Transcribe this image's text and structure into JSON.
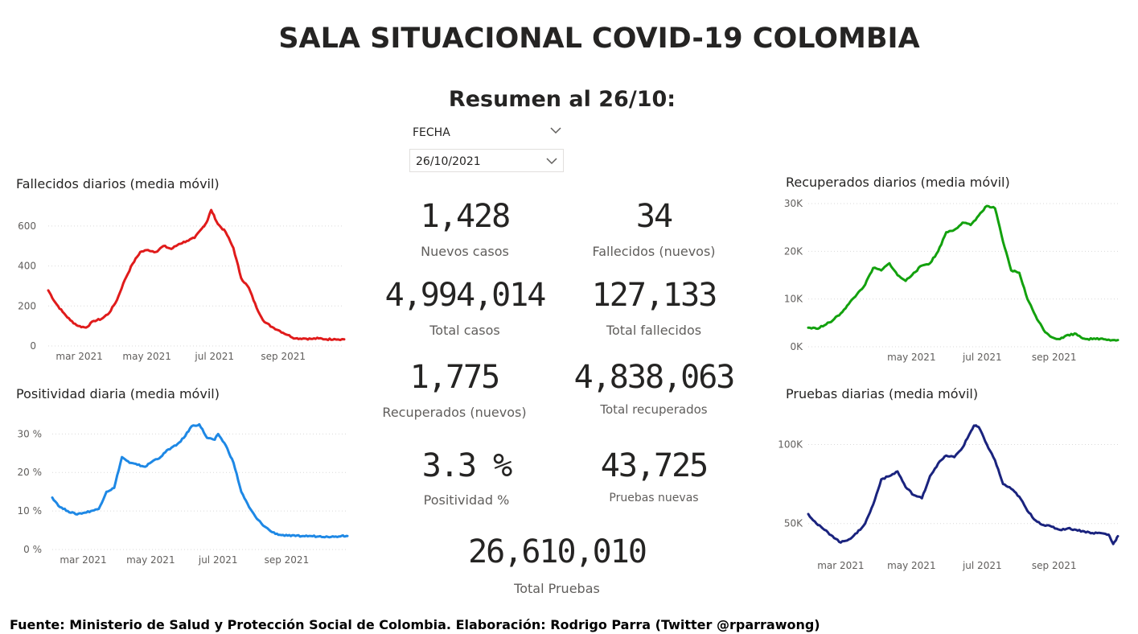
{
  "header": {
    "title": "SALA SITUACIONAL COVID-19 COLOMBIA",
    "subtitle": "Resumen al 26/10:"
  },
  "filter": {
    "label": "FECHA",
    "value": "26/10/2021",
    "icon": "chevron-down-icon"
  },
  "kpis": {
    "nuevos_casos": {
      "value": "1,428",
      "label": "Nuevos casos"
    },
    "fallecidos_nuevos": {
      "value": "34",
      "label": "Fallecidos (nuevos)"
    },
    "total_casos": {
      "value": "4,994,014",
      "label": "Total casos"
    },
    "total_fallecidos": {
      "value": "127,133",
      "label": "Total fallecidos"
    },
    "recuperados_nuevos": {
      "value": "1,775",
      "label": "Recuperados (nuevos)"
    },
    "total_recuperados": {
      "value": "4,838,063",
      "label": "Total recuperados"
    },
    "positividad": {
      "value": "3.3 %",
      "label": "Positividad %"
    },
    "pruebas_nuevas": {
      "value": "43,725",
      "label": "Pruebas nuevas"
    },
    "total_pruebas": {
      "value": "26,610,010",
      "label": "Total Pruebas"
    }
  },
  "footer": "Fuente: Ministerio de Salud y Protección Social de Colombia. Elaboración: Rodrigo Parra (Twitter @rparrawong)",
  "chart_data": [
    {
      "id": "fallecidos",
      "type": "line",
      "title": "Fallecidos diarios (media móvil)",
      "color": "#e01b1b",
      "ylim": [
        0,
        700
      ],
      "yticks": [
        0,
        200,
        400,
        600
      ],
      "ytick_labels": [
        "0",
        "200",
        "400",
        "600"
      ],
      "xlim": [
        "2021-02-01",
        "2021-10-26"
      ],
      "xticks": [
        "2021-03-01",
        "2021-05-01",
        "2021-07-01",
        "2021-09-01"
      ],
      "xtick_labels": [
        "mar 2021",
        "may 2021",
        "jul 2021",
        "sep 2021"
      ],
      "grid": true,
      "x": [
        "2021-02-01",
        "2021-02-07",
        "2021-02-14",
        "2021-02-21",
        "2021-02-28",
        "2021-03-07",
        "2021-03-14",
        "2021-03-21",
        "2021-03-28",
        "2021-04-04",
        "2021-04-11",
        "2021-04-18",
        "2021-04-25",
        "2021-05-02",
        "2021-05-09",
        "2021-05-16",
        "2021-05-23",
        "2021-05-30",
        "2021-06-06",
        "2021-06-13",
        "2021-06-20",
        "2021-06-24",
        "2021-06-28",
        "2021-07-04",
        "2021-07-11",
        "2021-07-18",
        "2021-07-25",
        "2021-08-01",
        "2021-08-08",
        "2021-08-15",
        "2021-08-22",
        "2021-08-29",
        "2021-09-05",
        "2021-09-12",
        "2021-09-19",
        "2021-09-26",
        "2021-10-03",
        "2021-10-10",
        "2021-10-17",
        "2021-10-26"
      ],
      "values": [
        278,
        220,
        170,
        128,
        100,
        92,
        125,
        135,
        165,
        230,
        330,
        410,
        470,
        480,
        470,
        500,
        485,
        510,
        525,
        540,
        590,
        620,
        680,
        610,
        570,
        490,
        340,
        290,
        190,
        120,
        95,
        75,
        55,
        38,
        38,
        35,
        38,
        33,
        35,
        33
      ]
    },
    {
      "id": "positividad",
      "type": "line",
      "title": "Positividad diaria (media móvil)",
      "color": "#1e88e5",
      "ylim": [
        0,
        33
      ],
      "yticks": [
        0,
        10,
        20,
        30
      ],
      "ytick_labels": [
        "0 %",
        "10 %",
        "20 %",
        "30 %"
      ],
      "xlim": [
        "2021-02-01",
        "2021-10-26"
      ],
      "xticks": [
        "2021-03-01",
        "2021-05-01",
        "2021-07-01",
        "2021-09-01"
      ],
      "xtick_labels": [
        "mar 2021",
        "may 2021",
        "jul 2021",
        "sep 2021"
      ],
      "grid": true,
      "x": [
        "2021-02-01",
        "2021-02-08",
        "2021-02-15",
        "2021-02-22",
        "2021-03-01",
        "2021-03-08",
        "2021-03-15",
        "2021-03-22",
        "2021-03-29",
        "2021-04-05",
        "2021-04-12",
        "2021-04-19",
        "2021-04-26",
        "2021-05-03",
        "2021-05-10",
        "2021-05-17",
        "2021-05-24",
        "2021-05-31",
        "2021-06-07",
        "2021-06-14",
        "2021-06-21",
        "2021-06-28",
        "2021-07-01",
        "2021-07-08",
        "2021-07-15",
        "2021-07-22",
        "2021-07-29",
        "2021-08-05",
        "2021-08-12",
        "2021-08-19",
        "2021-08-26",
        "2021-09-02",
        "2021-09-09",
        "2021-09-16",
        "2021-09-23",
        "2021-09-30",
        "2021-10-07",
        "2021-10-14",
        "2021-10-21",
        "2021-10-26"
      ],
      "values": [
        13.5,
        11,
        10,
        9.2,
        9.5,
        10,
        10.5,
        15,
        16,
        24,
        22.5,
        22,
        21.5,
        23,
        24,
        26,
        27,
        29,
        32,
        32.5,
        29,
        28.5,
        30,
        27,
        22.5,
        15,
        11,
        8,
        6,
        4.5,
        3.8,
        3.6,
        3.5,
        3.5,
        3.5,
        3.4,
        3.4,
        3.3,
        3.6,
        3.5
      ]
    },
    {
      "id": "recuperados",
      "type": "line",
      "title": "Recuperados diarios (media móvil)",
      "color": "#13a10e",
      "ylim": [
        0,
        30000
      ],
      "yticks": [
        0,
        10000,
        20000,
        30000
      ],
      "ytick_labels": [
        "0K",
        "10K",
        "20K",
        "30K"
      ],
      "xlim": [
        "2021-02-01",
        "2021-10-26"
      ],
      "xticks": [
        "2021-05-01",
        "2021-07-01",
        "2021-09-01"
      ],
      "xtick_labels": [
        "may 2021",
        "jul 2021",
        "sep 2021"
      ],
      "grid": true,
      "x": [
        "2021-02-01",
        "2021-02-08",
        "2021-02-15",
        "2021-02-22",
        "2021-03-01",
        "2021-03-08",
        "2021-03-15",
        "2021-03-22",
        "2021-03-29",
        "2021-04-05",
        "2021-04-12",
        "2021-04-19",
        "2021-04-26",
        "2021-05-03",
        "2021-05-10",
        "2021-05-17",
        "2021-05-24",
        "2021-05-31",
        "2021-06-07",
        "2021-06-14",
        "2021-06-21",
        "2021-06-28",
        "2021-07-05",
        "2021-07-12",
        "2021-07-19",
        "2021-07-26",
        "2021-08-02",
        "2021-08-09",
        "2021-08-16",
        "2021-08-23",
        "2021-08-30",
        "2021-09-06",
        "2021-09-13",
        "2021-09-20",
        "2021-09-27",
        "2021-10-04",
        "2021-10-11",
        "2021-10-18",
        "2021-10-26"
      ],
      "values": [
        4000,
        3800,
        4500,
        5500,
        7000,
        9000,
        11000,
        13000,
        16500,
        16000,
        17500,
        15000,
        13800,
        15500,
        17000,
        17500,
        20000,
        24000,
        24500,
        26000,
        25500,
        27500,
        29500,
        29000,
        22000,
        16000,
        15500,
        10000,
        6500,
        3500,
        2000,
        1600,
        2500,
        2700,
        1700,
        1600,
        1700,
        1500,
        1400
      ]
    },
    {
      "id": "pruebas",
      "type": "line",
      "title": "Pruebas diarias (media móvil)",
      "color": "#1a237e",
      "ylim": [
        30000,
        115000
      ],
      "yticks": [
        50000,
        100000
      ],
      "ytick_labels": [
        "50K",
        "100K"
      ],
      "xlim": [
        "2021-02-01",
        "2021-10-26"
      ],
      "xticks": [
        "2021-03-01",
        "2021-05-01",
        "2021-07-01",
        "2021-09-01"
      ],
      "xtick_labels": [
        "mar 2021",
        "may 2021",
        "jul 2021",
        "sep 2021"
      ],
      "grid": true,
      "x": [
        "2021-02-01",
        "2021-02-08",
        "2021-02-15",
        "2021-02-22",
        "2021-03-01",
        "2021-03-08",
        "2021-03-15",
        "2021-03-22",
        "2021-03-29",
        "2021-04-05",
        "2021-04-12",
        "2021-04-19",
        "2021-04-26",
        "2021-05-03",
        "2021-05-10",
        "2021-05-17",
        "2021-05-24",
        "2021-05-31",
        "2021-06-07",
        "2021-06-14",
        "2021-06-21",
        "2021-06-24",
        "2021-06-28",
        "2021-07-05",
        "2021-07-12",
        "2021-07-19",
        "2021-07-26",
        "2021-08-02",
        "2021-08-09",
        "2021-08-16",
        "2021-08-23",
        "2021-08-30",
        "2021-09-06",
        "2021-09-13",
        "2021-09-20",
        "2021-09-27",
        "2021-10-04",
        "2021-10-11",
        "2021-10-18",
        "2021-10-22",
        "2021-10-26"
      ],
      "values": [
        56000,
        50000,
        46000,
        42000,
        38000,
        40000,
        44000,
        50000,
        62000,
        78000,
        80000,
        83000,
        73000,
        68000,
        66000,
        80000,
        88000,
        93000,
        92000,
        98000,
        108000,
        112000,
        111000,
        100000,
        90000,
        75000,
        72000,
        67000,
        58000,
        52000,
        49000,
        48000,
        46000,
        47000,
        46000,
        45000,
        44000,
        44000,
        43000,
        37000,
        42000
      ]
    }
  ]
}
